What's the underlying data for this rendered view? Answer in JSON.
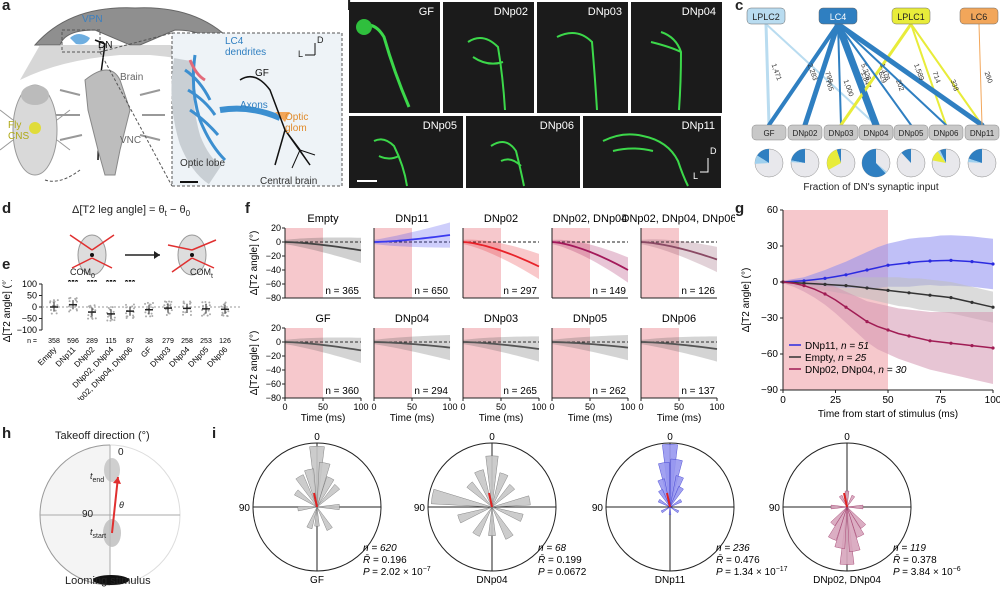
{
  "panel_labels": [
    "a",
    "b",
    "c",
    "d",
    "e",
    "f",
    "g",
    "h",
    "i"
  ],
  "panel_a": {
    "labels": [
      "VPN",
      "DN",
      "Brain",
      "Fly CNS",
      "VNC",
      "LC4 dendrites",
      "GF",
      "Axons",
      "Optic glom",
      "Optic lobe",
      "Central brain",
      "D",
      "L"
    ]
  },
  "panel_b": {
    "images": [
      "GF",
      "DNp02",
      "DNp03",
      "DNp04",
      "DNp05",
      "DNp06",
      "DNp11"
    ],
    "axis": [
      "D",
      "L"
    ]
  },
  "panel_c": {
    "sources": [
      {
        "name": "LPLC2",
        "color": "#b9dcf0"
      },
      {
        "name": "LC4",
        "color": "#2f7fc1"
      },
      {
        "name": "LPLC1",
        "color": "#e8ec3a"
      },
      {
        "name": "LC6",
        "color": "#f2a65a"
      }
    ],
    "targets": [
      "GF",
      "DNp02",
      "DNp03",
      "DNp04",
      "DNp05",
      "DNp06",
      "DNp11"
    ],
    "edge_labels": [
      "1,471",
      "790",
      "765",
      "2,283",
      "1,847",
      "1,000",
      "1,376",
      "714",
      "338",
      "5,226",
      "629",
      "202",
      "1,589",
      "260"
    ],
    "caption": "Fraction of DN's synaptic input",
    "pie_fractions": [
      {
        "target": "GF",
        "LC4": 0.16,
        "LPLC2": 0.1,
        "LPLC1": 0.0
      },
      {
        "target": "DNp02",
        "LC4": 0.22,
        "LPLC2": 0.02,
        "LPLC1": 0.0
      },
      {
        "target": "DNp03",
        "LC4": 0.05,
        "LPLC2": 0.0,
        "LPLC1": 0.28
      },
      {
        "target": "DNp04",
        "LC4": 0.62,
        "LPLC2": 0.02,
        "LPLC1": 0.0
      },
      {
        "target": "DNp05",
        "LC4": 0.12,
        "LPLC2": 0.0,
        "LPLC1": 0.0
      },
      {
        "target": "DNp06",
        "LC4": 0.07,
        "LPLC2": 0.03,
        "LPLC1": 0.12
      },
      {
        "target": "DNp11",
        "LC4": 0.2,
        "LPLC2": 0.04,
        "LPLC1": 0.0
      }
    ]
  },
  "panel_d": {
    "title": "Δ[T2 leg angle] = θ",
    "title_sub1": "t",
    "title_mid": " − θ",
    "title_sub2": "0",
    "com0": "COM",
    "com0_sub": "0",
    "comt": "COM",
    "comt_sub": "t"
  },
  "panel_e": {
    "ylabel": "Δ[T2 angle] (°)",
    "yticks": [
      "100",
      "50",
      "0",
      "−50",
      "−100"
    ],
    "categories": [
      "Empty",
      "DNp11",
      "DNp02",
      "DNp02, DNp04",
      "DNp02, DNp04, DNp06",
      "GF",
      "DNp03",
      "DNp04",
      "DNp05",
      "DNp06"
    ],
    "n_prefix": "n =",
    "n_values": [
      "358",
      "596",
      "289",
      "115",
      "87",
      "38",
      "279",
      "258",
      "253",
      "126"
    ],
    "significance": [
      "",
      "***",
      "***",
      "***",
      "***",
      "",
      "",
      "",
      "",
      ""
    ]
  },
  "panel_f": {
    "ylabel": "Δ[T2 angle] (°)",
    "xlabel": "Time (ms)",
    "yticks": [
      "20",
      "0",
      "−20",
      "−40",
      "−60",
      "−80"
    ],
    "xticks": [
      "0",
      "50",
      "100"
    ],
    "subplots": [
      {
        "title": "Empty",
        "n": "n = 365",
        "color": "#444444",
        "end": -12
      },
      {
        "title": "DNp11",
        "n": "n = 650",
        "color": "#3a3af0",
        "end": 10
      },
      {
        "title": "DNp02",
        "n": "n = 297",
        "color": "#e8232a",
        "end": -35
      },
      {
        "title": "DNp02, DNp04",
        "n": "n = 149",
        "color": "#a3195b",
        "end": -40
      },
      {
        "title": "DNp02, DNp04, DNp06",
        "n": "n = 126",
        "color": "#8a4a64",
        "end": -25
      },
      {
        "title": "GF",
        "n": "n = 360",
        "color": "#555555",
        "end": -12
      },
      {
        "title": "DNp04",
        "n": "n = 294",
        "color": "#555555",
        "end": -8
      },
      {
        "title": "DNp03",
        "n": "n = 265",
        "color": "#555555",
        "end": -10
      },
      {
        "title": "DNp05",
        "n": "n = 262",
        "color": "#555555",
        "end": -8
      },
      {
        "title": "DNp06",
        "n": "n = 137",
        "color": "#555555",
        "end": -10
      }
    ]
  },
  "chart_data": {
    "type": "line",
    "xlabel": "Time from start of stimulus (ms)",
    "ylabel": "Δ[T2 angle] (°)",
    "xlim": [
      0,
      100
    ],
    "ylim": [
      -90,
      60
    ],
    "xticks": [
      0,
      25,
      50,
      75,
      100
    ],
    "yticks": [
      60,
      30,
      0,
      -30,
      -60,
      -90
    ],
    "stimulus_window": [
      0,
      50
    ],
    "x": [
      0,
      5,
      10,
      15,
      20,
      25,
      30,
      35,
      40,
      45,
      50,
      55,
      60,
      65,
      70,
      75,
      80,
      85,
      90,
      95,
      100
    ],
    "series": [
      {
        "name": "DNp11, n = 51",
        "label": "DNp11, ",
        "n": "n = 51",
        "color": "#2b2be0",
        "band": "#8c8cf0",
        "values": [
          0,
          0.5,
          1,
          2,
          3,
          4.5,
          6,
          8,
          10,
          12,
          14,
          15,
          16,
          17,
          17.5,
          17.8,
          18,
          17.5,
          17,
          16,
          15
        ],
        "err": [
          1,
          2,
          3,
          5,
          7,
          9,
          11,
          13,
          15,
          17,
          18,
          19,
          20,
          20,
          20,
          21,
          21,
          21,
          21,
          21,
          21
        ]
      },
      {
        "name": "Empty, n = 25",
        "label": "Empty, ",
        "n": "n = 25",
        "color": "#333333",
        "band": "#bdbdbd",
        "values": [
          0,
          -0.5,
          -1,
          -1.5,
          -2,
          -2.5,
          -3,
          -4,
          -5,
          -6,
          -7,
          -8,
          -9,
          -10,
          -11,
          -12,
          -13,
          -15,
          -17,
          -19,
          -21
        ],
        "err": [
          1,
          2,
          3,
          4,
          5,
          6,
          7,
          8,
          9,
          10,
          11,
          12,
          12,
          13,
          13,
          13,
          13,
          13,
          13,
          13,
          13
        ]
      },
      {
        "name": "DNp02, DNp04, n = 30",
        "label": "DNp02, DNp04, ",
        "n": "n = 30",
        "color": "#a01c54",
        "band": "#d495b1",
        "values": [
          0,
          -1,
          -3,
          -6,
          -10,
          -15,
          -21,
          -27,
          -33,
          -37,
          -40,
          -43,
          -45,
          -47,
          -49,
          -50,
          -51,
          -52,
          -53,
          -54,
          -55
        ],
        "err": [
          1,
          3,
          5,
          7,
          9,
          11,
          13,
          15,
          17,
          19,
          20,
          21,
          22,
          23,
          24,
          25,
          26,
          27,
          28,
          29,
          30
        ]
      }
    ]
  },
  "panel_h": {
    "title": "Takeoff direction (°)",
    "tick0": "0",
    "tick90": "90",
    "t_end": "t",
    "t_end_sub": "end",
    "t_start": "t",
    "t_start_sub": "start",
    "theta": "θ",
    "caption": "Looming stimulus"
  },
  "panel_i": {
    "tick0": "0",
    "tick90": "90",
    "roses": [
      {
        "name": "GF",
        "n": "n = 620",
        "R": "= 0.196",
        "P": "= 2.02 × 10",
        "P_exp": "−7",
        "color": "#c7c7c7",
        "stroke": "#777",
        "angles": [
          0,
          10,
          -12,
          25,
          -30,
          45,
          -55,
          90,
          -95,
          150,
          -160,
          180
        ],
        "lengths": [
          0.95,
          0.7,
          0.6,
          0.5,
          0.55,
          0.45,
          0.4,
          0.35,
          0.3,
          0.4,
          0.35,
          0.3
        ]
      },
      {
        "name": "DNp04",
        "n": "n = 68",
        "R": "= 0.199",
        "P": "= 0.0672",
        "P_exp": "",
        "color": "#c7c7c7",
        "stroke": "#777",
        "angles": [
          0,
          20,
          -20,
          45,
          -45,
          80,
          -80,
          110,
          -110,
          150,
          -150,
          180
        ],
        "lengths": [
          0.8,
          0.55,
          0.6,
          0.45,
          0.5,
          0.6,
          0.95,
          0.5,
          0.55,
          0.55,
          0.5,
          0.45
        ]
      },
      {
        "name": "DNp11",
        "n": "n = 236",
        "R": "= 0.476",
        "P": "= 1.34 × 10",
        "P_exp": "−17",
        "color": "#9898f0",
        "stroke": "#4040d0",
        "angles": [
          0,
          8,
          -8,
          18,
          -18,
          30,
          -30,
          60,
          -60,
          120,
          -120,
          180
        ],
        "lengths": [
          0.98,
          0.75,
          0.7,
          0.5,
          0.45,
          0.35,
          0.3,
          0.2,
          0.2,
          0.15,
          0.15,
          0.12
        ]
      },
      {
        "name": "DNp02, DNp04",
        "n": "n = 119",
        "R": "= 0.378",
        "P": "= 3.84 × 10",
        "P_exp": "−6",
        "color": "#d8a6bd",
        "stroke": "#a03c6b",
        "angles": [
          180,
          170,
          -170,
          155,
          -155,
          140,
          -140,
          90,
          -90,
          30,
          -30,
          0
        ],
        "lengths": [
          0.9,
          0.7,
          0.65,
          0.5,
          0.55,
          0.4,
          0.35,
          0.25,
          0.25,
          0.2,
          0.2,
          0.25
        ]
      }
    ]
  }
}
